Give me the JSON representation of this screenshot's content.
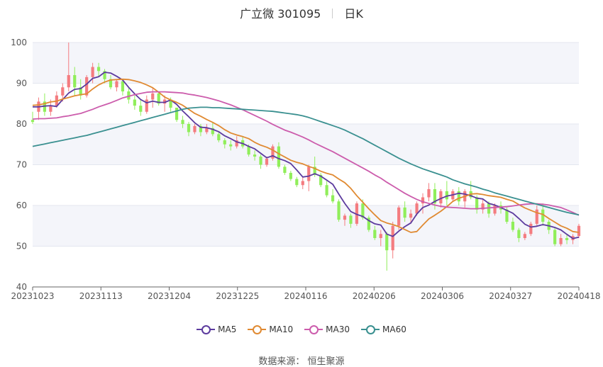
{
  "header": {
    "stock": "广立微 301095",
    "period": "日K"
  },
  "source": "数据来源： 恒生聚源",
  "colors": {
    "up": "#f47c80",
    "down": "#90ee5a",
    "MA5": "#5c3b9e",
    "MA10": "#e08a32",
    "MA30": "#cc5cac",
    "MA60": "#3a9090",
    "band": "#f4f5fa",
    "grid": "#e3e6ef"
  },
  "chart_data": {
    "type": "candlestick",
    "title": "广立微 301095  日K",
    "xlabel": "",
    "ylabel": "",
    "ylim": [
      40,
      100
    ],
    "yticks": [
      40,
      50,
      60,
      70,
      80,
      90,
      100
    ],
    "xticks": [
      "20231023",
      "20231113",
      "20231204",
      "20231225",
      "20240116",
      "20240206",
      "20240306",
      "20240327",
      "20240418"
    ],
    "legend": [
      "MA5",
      "MA10",
      "MA30",
      "MA60"
    ],
    "legend_position": "bottom",
    "grid": true,
    "ohlc": [
      [
        81,
        83,
        80,
        80.5
      ],
      [
        83,
        86.5,
        81,
        85.5
      ],
      [
        85.5,
        87.5,
        82,
        83
      ],
      [
        83,
        86,
        82,
        84.5
      ],
      [
        84.5,
        88,
        84,
        87
      ],
      [
        87,
        90,
        85.5,
        89
      ],
      [
        89,
        100,
        88,
        92
      ],
      [
        92,
        94,
        87,
        89
      ],
      [
        89,
        91,
        86,
        87
      ],
      [
        87,
        92,
        86.5,
        91.5
      ],
      [
        91.5,
        95,
        90,
        94
      ],
      [
        94,
        95,
        91.5,
        93
      ],
      [
        93,
        93.5,
        90,
        91
      ],
      [
        91,
        92,
        88.5,
        89
      ],
      [
        89,
        91,
        88,
        90.5
      ],
      [
        90.5,
        91,
        87,
        88
      ],
      [
        88,
        89,
        85,
        86
      ],
      [
        86,
        87,
        83.5,
        84.5
      ],
      [
        84.5,
        86,
        82,
        83
      ],
      [
        83,
        87,
        82.5,
        86
      ],
      [
        86,
        89,
        84,
        87.5
      ],
      [
        87.5,
        88,
        84.5,
        85
      ],
      [
        85,
        87,
        83,
        86
      ],
      [
        86,
        86.5,
        83,
        84
      ],
      [
        84,
        84,
        80.5,
        81
      ],
      [
        81,
        82,
        79,
        80
      ],
      [
        80,
        80.5,
        77,
        78
      ],
      [
        78,
        80,
        77.5,
        79.5
      ],
      [
        79.5,
        80,
        77,
        78
      ],
      [
        78,
        80,
        77.5,
        79
      ],
      [
        79,
        80.5,
        77,
        77.5
      ],
      [
        77.5,
        78,
        75.5,
        76
      ],
      [
        76,
        76.5,
        74,
        75
      ],
      [
        75,
        76,
        73.5,
        74.5
      ],
      [
        74.5,
        77,
        74,
        76
      ],
      [
        76,
        77,
        74,
        74.5
      ],
      [
        74.5,
        75,
        72,
        72.5
      ],
      [
        72.5,
        73.5,
        71,
        72
      ],
      [
        72,
        72.5,
        69,
        70
      ],
      [
        70,
        72,
        69.5,
        71.5
      ],
      [
        71.5,
        75,
        71,
        74.5
      ],
      [
        74.5,
        75.5,
        69,
        69.5
      ],
      [
        69.5,
        70,
        67.5,
        68
      ],
      [
        68,
        68.5,
        66,
        66.5
      ],
      [
        66.5,
        67,
        64.5,
        65
      ],
      [
        65,
        67,
        64,
        66
      ],
      [
        66,
        70,
        63.5,
        69.5
      ],
      [
        69.5,
        72,
        67,
        67.5
      ],
      [
        67.5,
        68,
        64.5,
        65
      ],
      [
        65,
        66,
        62,
        62.5
      ],
      [
        62.5,
        64,
        60.5,
        61
      ],
      [
        61,
        61.5,
        56,
        56.5
      ],
      [
        56.5,
        58,
        55,
        57.5
      ],
      [
        57.5,
        58,
        54.5,
        55.5
      ],
      [
        55.5,
        61,
        55,
        60.5
      ],
      [
        60.5,
        61.5,
        56.5,
        57
      ],
      [
        57,
        57.5,
        53.5,
        54
      ],
      [
        54,
        55,
        51.5,
        52
      ],
      [
        52,
        54,
        50,
        53
      ],
      [
        53,
        53.5,
        44,
        49
      ],
      [
        49,
        56,
        47,
        55
      ],
      [
        55,
        60,
        54,
        59.5
      ],
      [
        59.5,
        61,
        56,
        57
      ],
      [
        57,
        59,
        55.5,
        58
      ],
      [
        58,
        61,
        57.5,
        60.5
      ],
      [
        60.5,
        63,
        58,
        62
      ],
      [
        62,
        65.5,
        61,
        64
      ],
      [
        64,
        65.5,
        59,
        60.5
      ],
      [
        60.5,
        64,
        59.5,
        63.5
      ],
      [
        63.5,
        66,
        60,
        61.5
      ],
      [
        61.5,
        64,
        61,
        63.5
      ],
      [
        63.5,
        64.5,
        60,
        61
      ],
      [
        61,
        64,
        59.5,
        63.5
      ],
      [
        63.5,
        66,
        61.5,
        62
      ],
      [
        62,
        62.5,
        58,
        59
      ],
      [
        59,
        61.5,
        58,
        60.5
      ],
      [
        60.5,
        61,
        57,
        58
      ],
      [
        58,
        60.5,
        57.5,
        60
      ],
      [
        60,
        61,
        58,
        59
      ],
      [
        59,
        59.5,
        55.5,
        56
      ],
      [
        56,
        57,
        53.5,
        54
      ],
      [
        54,
        54.5,
        51,
        52
      ],
      [
        52,
        53.5,
        51.5,
        53
      ],
      [
        53,
        56,
        52.5,
        55.5
      ],
      [
        55.5,
        60,
        55,
        59
      ],
      [
        59,
        60.5,
        55,
        56
      ],
      [
        56,
        56.5,
        53,
        54
      ],
      [
        54,
        54.5,
        50,
        50.5
      ],
      [
        50.5,
        53,
        50,
        52
      ],
      [
        52,
        53,
        50.5,
        51.5
      ],
      [
        51.5,
        53,
        50.5,
        52.5
      ],
      [
        52.5,
        55.5,
        52,
        55
      ]
    ],
    "series": [
      {
        "name": "MA5",
        "values": [
          84.2,
          84.2,
          84.4,
          84.5,
          84.3,
          86,
          87.6,
          88.5,
          88.7,
          89.8,
          91.2,
          91.6,
          92.7,
          92.5,
          91.7,
          90.8,
          89,
          87.4,
          86,
          85.2,
          85.6,
          85.3,
          85.3,
          85.9,
          84.8,
          83.2,
          81.8,
          80.3,
          79.2,
          79.1,
          78.7,
          78.1,
          77.1,
          76.4,
          75.6,
          75.2,
          74.5,
          73.9,
          72.8,
          71.7,
          72.2,
          71.5,
          71,
          70.3,
          68.7,
          67,
          67.2,
          67.8,
          67.2,
          66.2,
          65.2,
          62.8,
          60.5,
          58.5,
          57.8,
          57.3,
          56.3,
          55.5,
          55.2,
          53,
          52.4,
          53.7,
          54.8,
          55.7,
          57.9,
          59.5,
          60.1,
          61,
          61.7,
          62.3,
          62.6,
          63,
          62.8,
          62.4,
          61.8,
          61.6,
          60.5,
          60.1,
          59.5,
          58.8,
          58.1,
          56.8,
          55.4,
          54.7,
          54.9,
          55.3,
          55,
          54.6,
          54,
          52.9,
          51.9,
          52.2
        ]
      },
      {
        "name": "MA10",
        "values": [
          84.6,
          84.7,
          85,
          85.4,
          85.6,
          86.1,
          86.5,
          86.9,
          87.2,
          87.4,
          88.6,
          89.6,
          90.3,
          90.8,
          90.9,
          91,
          90.9,
          90.6,
          90.2,
          89.6,
          88.9,
          87.8,
          86.6,
          85.9,
          85.3,
          84.6,
          83.6,
          82.6,
          81.9,
          81.1,
          80.4,
          79.6,
          78.6,
          77.8,
          77.3,
          76.9,
          76.4,
          75.5,
          74.8,
          74.3,
          73.6,
          72.7,
          71.9,
          71.1,
          70.6,
          70.2,
          69.6,
          69.1,
          68.4,
          67.9,
          67.5,
          66.5,
          65.6,
          64.2,
          62.4,
          60.8,
          59.2,
          57.7,
          56.3,
          55.7,
          55.3,
          54.8,
          54.1,
          53.4,
          53.6,
          55.2,
          56.7,
          57.6,
          58.6,
          59.7,
          61,
          61.8,
          62.2,
          62.8,
          62.9,
          62.7,
          62.4,
          62.2,
          62,
          61.5,
          61.1,
          60.2,
          59.4,
          58.8,
          58.2,
          57.8,
          56.8,
          55.9,
          55,
          54.4,
          53.6,
          53.4
        ]
      },
      {
        "name": "MA30",
        "values": [
          81.2,
          81.3,
          81.3,
          81.4,
          81.5,
          81.8,
          82,
          82.3,
          82.6,
          83.1,
          83.6,
          84.2,
          84.7,
          85.2,
          85.8,
          86.4,
          86.8,
          87.2,
          87.5,
          87.8,
          87.9,
          87.9,
          87.9,
          87.8,
          87.7,
          87.6,
          87.3,
          87.1,
          86.8,
          86.5,
          86.1,
          85.7,
          85.2,
          84.7,
          84.1,
          83.5,
          82.8,
          82.1,
          81.4,
          80.7,
          79.9,
          79.2,
          78.5,
          78,
          77.4,
          76.8,
          76.1,
          75.3,
          74.6,
          73.9,
          73.2,
          72.4,
          71.6,
          70.8,
          70,
          69.2,
          68.4,
          67.5,
          66.7,
          65.7,
          64.8,
          63.9,
          63,
          62.2,
          61.5,
          60.9,
          60.5,
          60.1,
          59.8,
          59.6,
          59.5,
          59.4,
          59.3,
          59.2,
          59.2,
          59.3,
          59.4,
          59.5,
          59.6,
          59.7,
          59.9,
          60.1,
          60.3,
          60.4,
          60.4,
          60.3,
          60.1,
          59.8,
          59.5,
          58.9,
          58.3,
          57.6
        ]
      },
      {
        "name": "MA60",
        "values": [
          74.5,
          74.8,
          75.1,
          75.4,
          75.7,
          76,
          76.3,
          76.6,
          76.9,
          77.2,
          77.6,
          78,
          78.4,
          78.8,
          79.2,
          79.6,
          80,
          80.4,
          80.8,
          81.2,
          81.6,
          82,
          82.4,
          82.8,
          83.2,
          83.6,
          83.9,
          84,
          84.1,
          84.1,
          84,
          84,
          83.9,
          83.8,
          83.7,
          83.6,
          83.5,
          83.4,
          83.3,
          83.2,
          83.1,
          82.9,
          82.7,
          82.5,
          82.3,
          82,
          81.6,
          81.1,
          80.6,
          80.1,
          79.6,
          79.1,
          78.5,
          77.8,
          77.1,
          76.4,
          75.6,
          74.8,
          74,
          73.2,
          72.4,
          71.6,
          70.9,
          70.2,
          69.6,
          69,
          68.5,
          68,
          67.5,
          67,
          66.3,
          65.8,
          65.3,
          64.9,
          64.5,
          64,
          63.6,
          63.1,
          62.7,
          62.3,
          61.9,
          61.5,
          61.1,
          60.7,
          60.3,
          59.9,
          59.5,
          59.1,
          58.7,
          58.3,
          58,
          57.7
        ]
      }
    ]
  }
}
